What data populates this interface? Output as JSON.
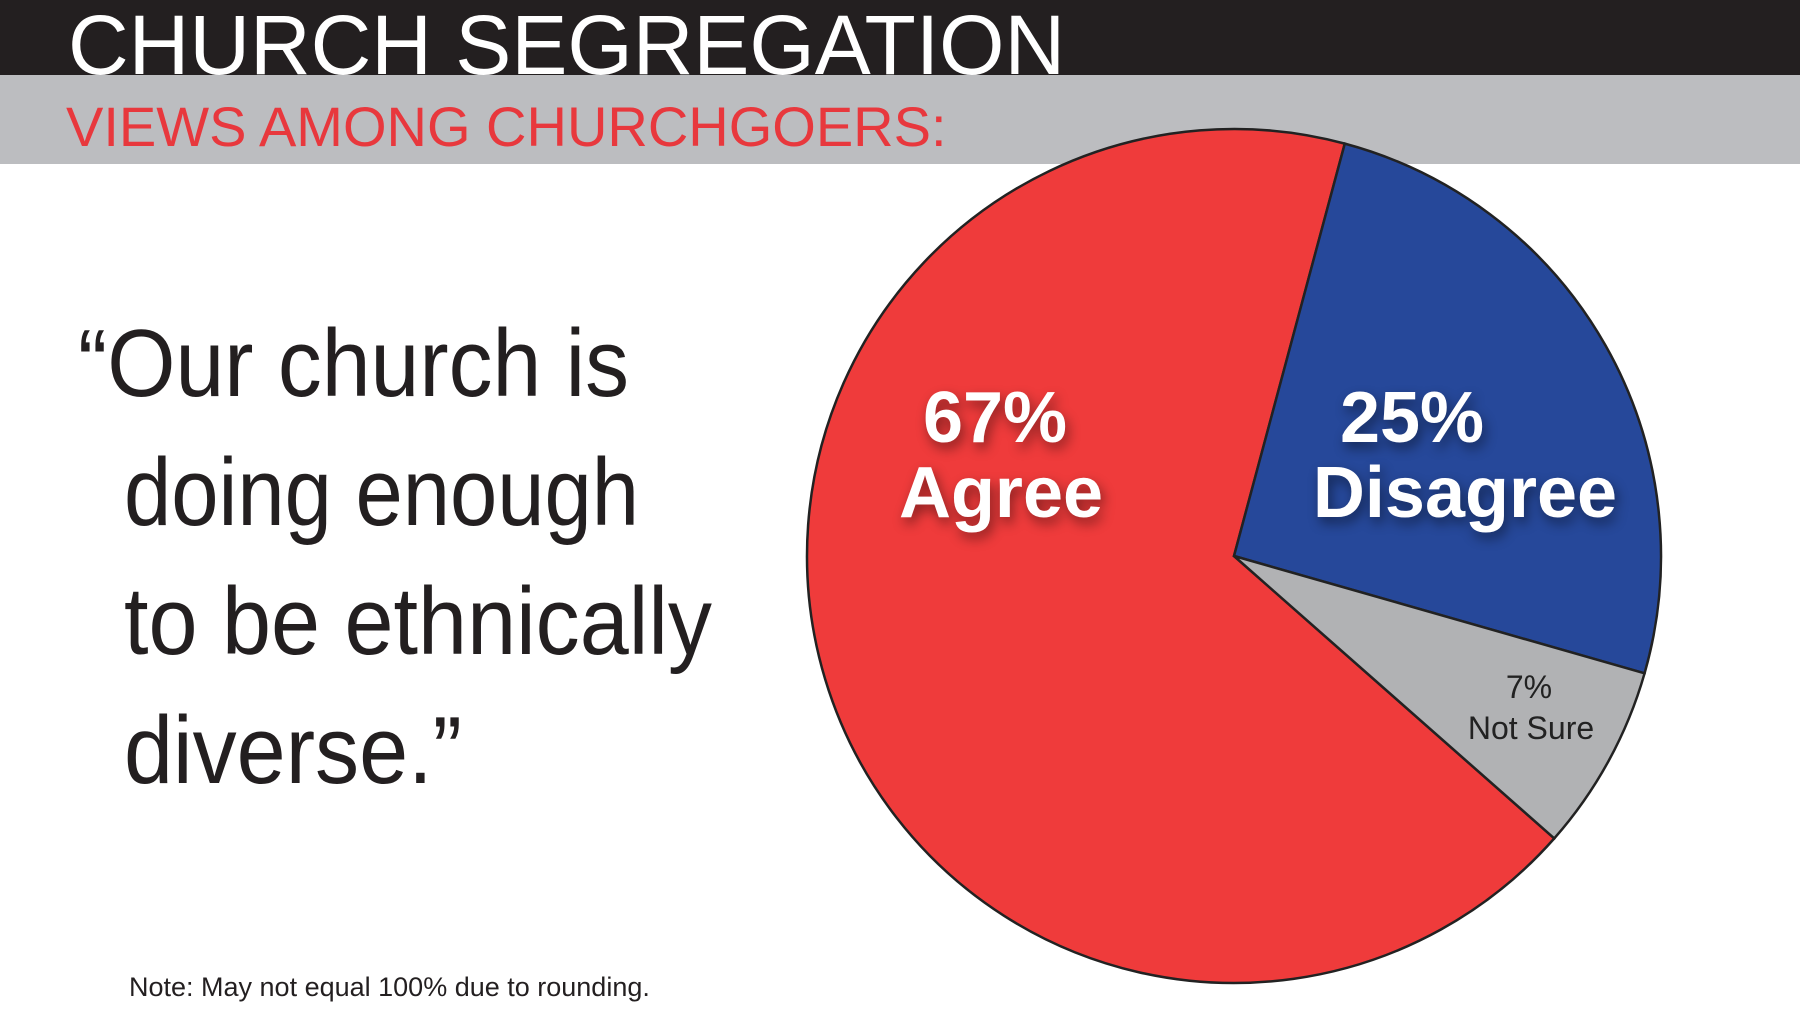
{
  "chart_data": {
    "type": "pie",
    "title": "CHURCH SEGREGATION",
    "subtitle": "VIEWS AMONG CHURCHGOERS:",
    "quote": [
      "“Our church is",
      "doing enough",
      "to be ethnically",
      "diverse.”"
    ],
    "categories": [
      "Agree",
      "Disagree",
      "Not Sure"
    ],
    "values": [
      67,
      25,
      7
    ],
    "value_labels": [
      "67%",
      "25%",
      "7%"
    ],
    "colors": [
      "#ef3b3b",
      "#26489a",
      "#b1b2b4"
    ],
    "note": "Note: May not equal 100% due to rounding."
  }
}
